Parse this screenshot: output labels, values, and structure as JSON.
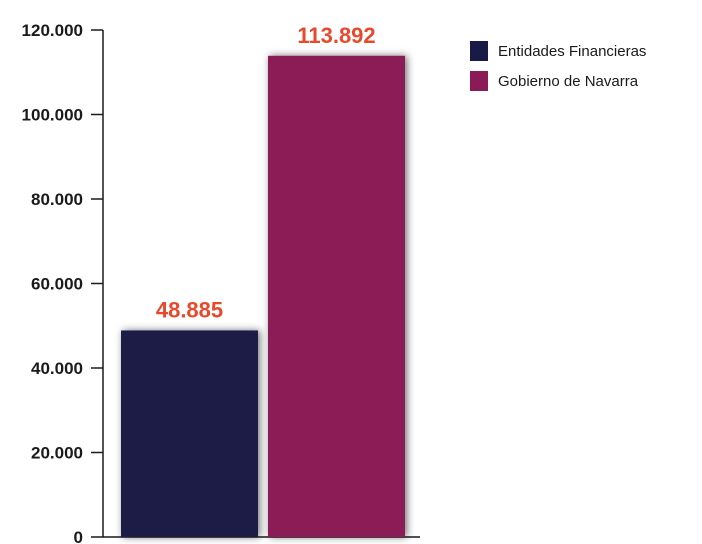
{
  "chart_data": {
    "type": "bar",
    "categories": [
      "Entidades Financieras",
      "Gobierno de Navarra"
    ],
    "values": [
      48885,
      113892
    ],
    "value_labels": [
      "48.885",
      "113.892"
    ],
    "colors": [
      "#1a1a47",
      "#8c1a57"
    ],
    "label_color": "#e8492c",
    "ylim": [
      0,
      120000
    ],
    "yticks": [
      0,
      20000,
      40000,
      60000,
      80000,
      100000,
      120000
    ],
    "ytick_labels": [
      "0",
      "20.000",
      "40.000",
      "60.000",
      "80.000",
      "100.000",
      "120.000"
    ],
    "grid": false,
    "legend": {
      "position": "top-right",
      "items": [
        {
          "label": "Entidades Financieras",
          "color": "#1a1a47"
        },
        {
          "label": "Gobierno de Navarra",
          "color": "#8c1a57"
        }
      ]
    }
  }
}
